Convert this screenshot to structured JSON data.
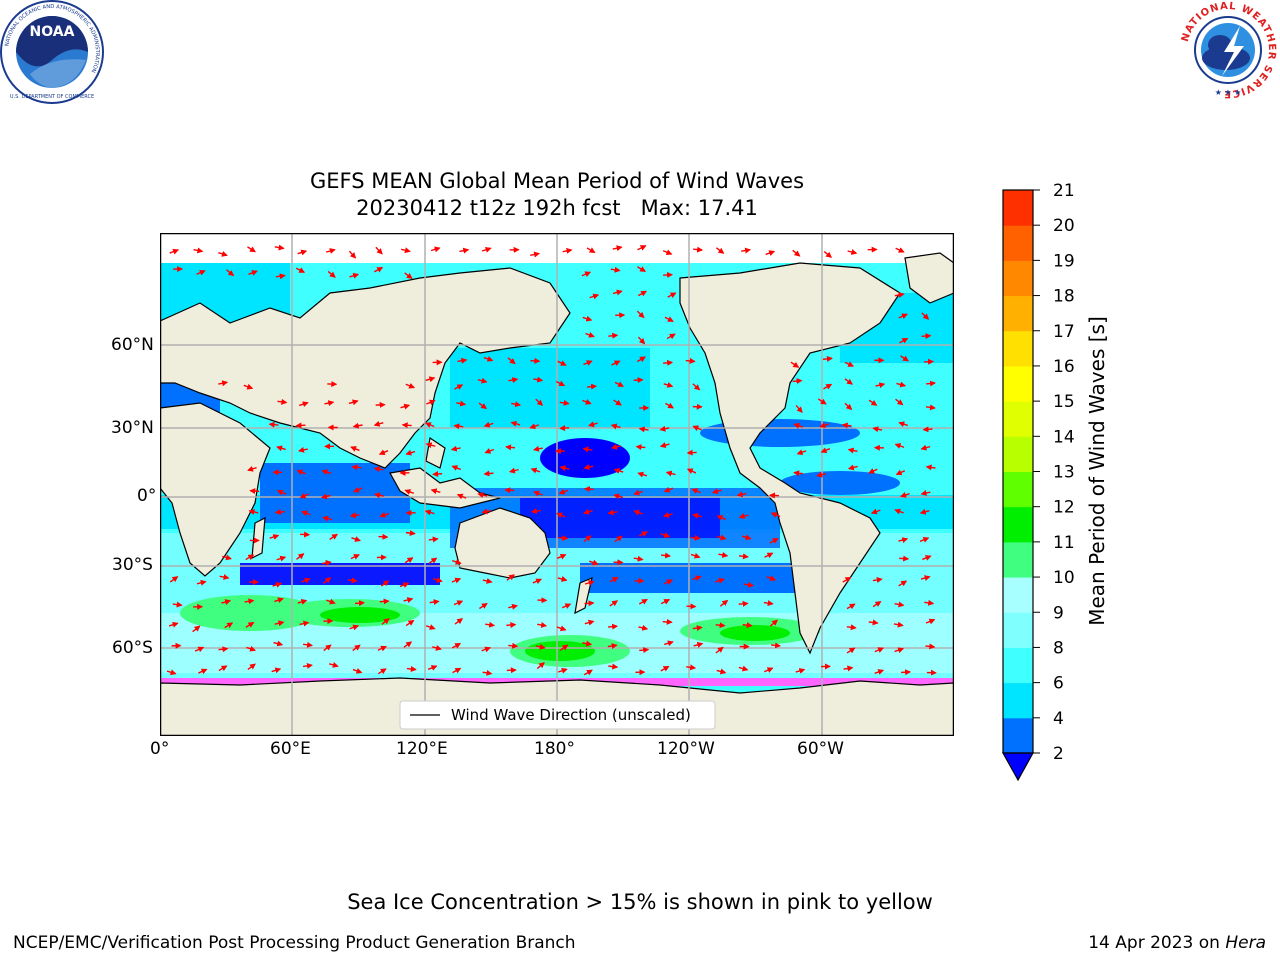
{
  "logos": {
    "left": {
      "name": "NOAA",
      "ring_text": "NATIONAL OCEANIC AND ATMOSPHERIC ADMINISTRATION",
      "bottom_text": "U.S. DEPARTMENT OF COMMERCE"
    },
    "right": {
      "ring_text": "NATIONAL WEATHER SERVICE"
    }
  },
  "title": {
    "line1": "GEFS MEAN Global Mean Period of Wind Waves",
    "line2": "20230412 t12z 192h fcst   Max: 17.41"
  },
  "map": {
    "x_ticks": [
      "0°",
      "60°E",
      "120°E",
      "180°",
      "120°W",
      "60°W"
    ],
    "y_ticks": [
      "60°N",
      "30°N",
      "0°",
      "30°S",
      "60°S"
    ],
    "legend": "Wind Wave Direction (unscaled)",
    "land_color": "#efeddc",
    "arrow_color": "#ff0000"
  },
  "colorbar": {
    "label": "Mean Period of Wind Waves [s]",
    "ticks": [
      "2",
      "4",
      "6",
      "8",
      "9",
      "10",
      "11",
      "12",
      "13",
      "14",
      "15",
      "16",
      "17",
      "18",
      "19",
      "20",
      "21"
    ],
    "colors": [
      "#0070ff",
      "#00e5ff",
      "#40ffff",
      "#80ffff",
      "#a8ffff",
      "#40ff80",
      "#00ee00",
      "#60ff00",
      "#b8ff00",
      "#e0ff00",
      "#ffff00",
      "#ffe000",
      "#ffb000",
      "#ff8800",
      "#ff6000",
      "#ff3000",
      "#ff0000"
    ],
    "under_color": "#0000ff"
  },
  "footer": {
    "ice_note": "Sea Ice Concentration > 15% is shown in pink to yellow",
    "left": "NCEP/EMC/Verification Post Processing Product Generation Branch",
    "date": "14 Apr 2023 on ",
    "machine": "Hera"
  }
}
